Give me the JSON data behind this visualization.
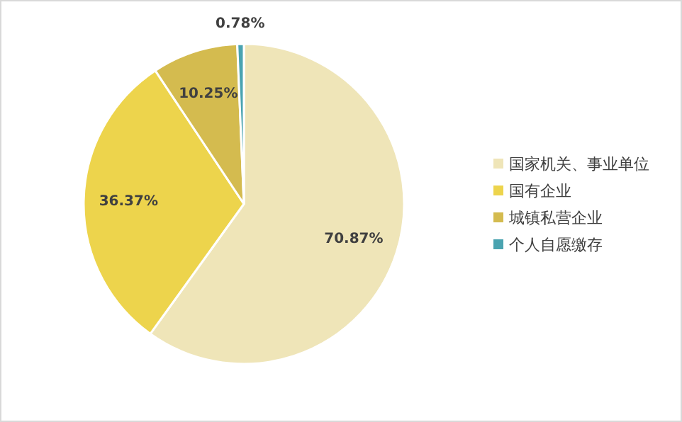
{
  "chart_data": {
    "type": "pie",
    "categories": [
      "国家机关、事业单位",
      "国有企业",
      "城镇私营企业",
      "个人自愿缴存"
    ],
    "values": [
      70.87,
      36.37,
      10.25,
      0.78
    ],
    "value_labels": [
      "70.87%",
      "36.37%",
      "10.25%",
      "0.78%"
    ],
    "colors": [
      "#efe5b8",
      "#edd44c",
      "#d4bb4f",
      "#4aa3b0"
    ],
    "legend": "right"
  }
}
